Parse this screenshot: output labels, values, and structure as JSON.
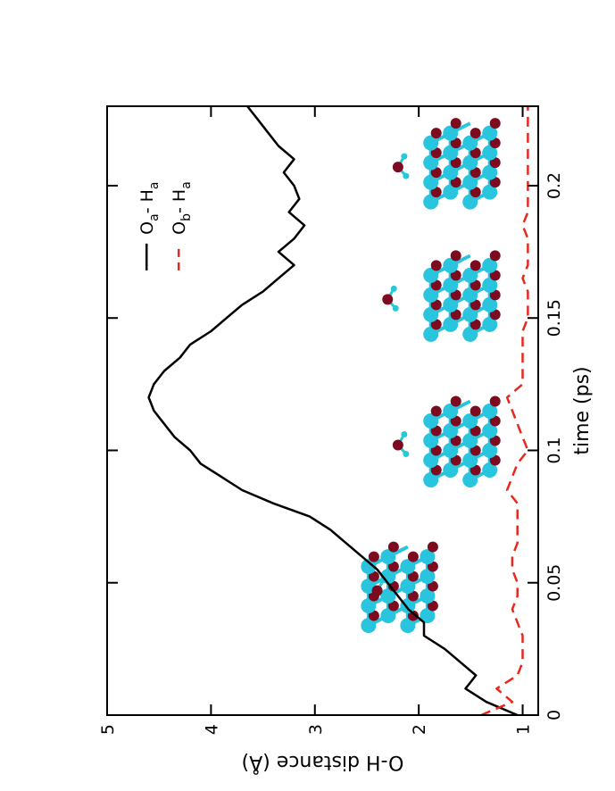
{
  "chart_data": {
    "type": "line",
    "xlabel": "time (ps)",
    "ylabel": "O-H distance (Å)",
    "xlim": [
      0,
      0.23
    ],
    "ylim": [
      0.85,
      5
    ],
    "x_ticks": [
      0,
      0.05,
      0.1,
      0.15,
      0.2
    ],
    "x_tick_labels": [
      "0",
      "0.05",
      "0.1",
      "0.15",
      "0.2"
    ],
    "y_ticks": [
      1,
      2,
      3,
      4,
      5
    ],
    "y_tick_labels": [
      "1",
      "2",
      "3",
      "4",
      "5"
    ],
    "legend_position": "top-right",
    "series": [
      {
        "name": "Oa- Ha",
        "legend_main_1": "O",
        "legend_sub_1": "a",
        "legend_sep": "- H",
        "legend_sub_2": "a",
        "style": "solid",
        "color": "#000000",
        "x": [
          0.0,
          0.005,
          0.01,
          0.015,
          0.02,
          0.025,
          0.03,
          0.035,
          0.04,
          0.045,
          0.05,
          0.055,
          0.06,
          0.065,
          0.07,
          0.075,
          0.08,
          0.085,
          0.09,
          0.095,
          0.1,
          0.105,
          0.11,
          0.115,
          0.12,
          0.125,
          0.13,
          0.135,
          0.14,
          0.145,
          0.15,
          0.155,
          0.16,
          0.165,
          0.17,
          0.175,
          0.18,
          0.185,
          0.19,
          0.195,
          0.2,
          0.205,
          0.21,
          0.215,
          0.22,
          0.225,
          0.23
        ],
        "y": [
          1.05,
          1.35,
          1.55,
          1.45,
          1.6,
          1.75,
          1.95,
          1.95,
          2.1,
          2.2,
          2.3,
          2.4,
          2.55,
          2.7,
          2.85,
          3.05,
          3.4,
          3.7,
          3.9,
          4.1,
          4.2,
          4.35,
          4.45,
          4.55,
          4.6,
          4.55,
          4.45,
          4.3,
          4.2,
          4.0,
          3.85,
          3.7,
          3.5,
          3.35,
          3.2,
          3.35,
          3.2,
          3.1,
          3.25,
          3.15,
          3.2,
          3.3,
          3.2,
          3.35,
          3.45,
          3.55,
          3.65
        ]
      },
      {
        "name": "Ob- Ha",
        "legend_main_1": "O",
        "legend_sub_1": "b",
        "legend_sep": "- H",
        "legend_sub_2": "a",
        "style": "dashed",
        "color": "#e8281e",
        "x": [
          0.0,
          0.005,
          0.01,
          0.015,
          0.02,
          0.025,
          0.03,
          0.035,
          0.04,
          0.045,
          0.05,
          0.055,
          0.06,
          0.065,
          0.07,
          0.075,
          0.08,
          0.085,
          0.09,
          0.095,
          0.1,
          0.105,
          0.11,
          0.115,
          0.12,
          0.125,
          0.13,
          0.135,
          0.14,
          0.145,
          0.15,
          0.155,
          0.16,
          0.165,
          0.17,
          0.175,
          0.18,
          0.185,
          0.19,
          0.195,
          0.2,
          0.205,
          0.21,
          0.215,
          0.22,
          0.225,
          0.23
        ],
        "y": [
          1.4,
          1.1,
          1.25,
          1.05,
          1.0,
          1.0,
          1.0,
          1.05,
          1.1,
          1.05,
          1.05,
          1.1,
          1.1,
          1.05,
          1.05,
          1.05,
          1.05,
          1.15,
          1.1,
          1.05,
          0.95,
          1.0,
          1.05,
          1.1,
          1.15,
          1.0,
          1.0,
          1.0,
          1.0,
          1.0,
          0.95,
          0.95,
          0.95,
          1.0,
          0.95,
          0.95,
          0.95,
          1.0,
          0.95,
          0.95,
          0.95,
          0.95,
          0.95,
          0.95,
          0.95,
          0.95,
          0.95
        ]
      }
    ],
    "insets": [
      {
        "at_x": 0.045,
        "at_y": 2.2,
        "upper_molecule_at_y": 2.4,
        "count": 1
      },
      {
        "at_x": 0.1,
        "at_y": 1.6,
        "upper_molecule_at_y": 2.2,
        "count": 1
      },
      {
        "at_x": 0.155,
        "at_y": 1.6,
        "upper_molecule_at_y": 2.3,
        "count": 1
      },
      {
        "at_x": 0.205,
        "at_y": 1.6,
        "upper_molecule_at_y": 2.2,
        "count": 1
      }
    ],
    "atom_colors": {
      "large": "#29c4de",
      "oxygen": "#7d0a1e",
      "hydrogen": "#2ac7d6"
    }
  }
}
